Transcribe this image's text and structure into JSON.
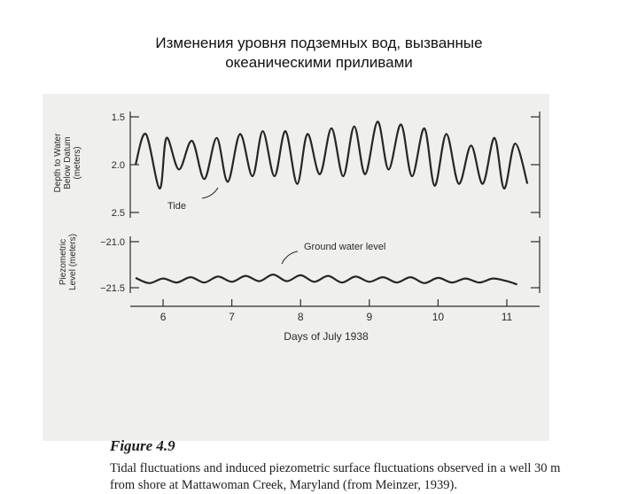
{
  "slide": {
    "title_line1": "Изменения уровня подземных вод, вызванные",
    "title_line2": "океаническими приливами"
  },
  "figure": {
    "number": "Figure 4.9",
    "caption": "Tidal fluctuations and induced piezometric surface fluctuations observed in a well 30 m from shore at Mattawoman Creek, Maryland (from Meinzer, 1939)."
  },
  "chart_data": {
    "type": "line",
    "xlabel": "Days of July 1938",
    "x_ticks": [
      "6",
      "7",
      "8",
      "9",
      "10",
      "11"
    ],
    "xlim": [
      5.6,
      11.4
    ],
    "panels": [
      {
        "name": "tide",
        "ylabel_lines": [
          "Depth to Water",
          "Below Datum",
          "(meters)"
        ],
        "y_ticks": [
          "1.5",
          "2.0",
          "2.5"
        ],
        "ylim": [
          1.5,
          2.5
        ],
        "inverted": true,
        "annotation": "Tide",
        "series": [
          {
            "x": [
              5.6,
              5.75,
              5.95,
              6.05,
              6.23,
              6.42,
              6.6,
              6.78,
              6.94,
              7.12,
              7.3,
              7.45,
              7.62,
              7.78,
              7.95,
              8.1,
              8.28,
              8.45,
              8.62,
              8.78,
              8.94,
              9.12,
              9.28,
              9.46,
              9.62,
              9.8,
              9.95,
              10.12,
              10.3,
              10.48,
              10.65,
              10.82,
              10.96,
              11.12,
              11.3
            ],
            "y": [
              2.0,
              1.68,
              2.25,
              1.72,
              2.05,
              1.75,
              2.15,
              1.72,
              2.18,
              1.68,
              2.12,
              1.65,
              2.12,
              1.65,
              2.2,
              1.68,
              2.1,
              1.62,
              2.12,
              1.6,
              2.1,
              1.55,
              2.05,
              1.58,
              2.12,
              1.62,
              2.22,
              1.68,
              2.2,
              1.8,
              2.2,
              1.72,
              2.25,
              1.78,
              2.2
            ]
          }
        ]
      },
      {
        "name": "ground water",
        "ylabel_lines": [
          "Piezometric",
          "Level (meters)"
        ],
        "y_ticks": [
          "−21.0",
          "−21.5"
        ],
        "ylim": [
          -21.6,
          -20.9
        ],
        "inverted": false,
        "annotation": "Ground water level",
        "series": [
          {
            "x": [
              5.6,
              5.8,
              6.0,
              6.2,
              6.4,
              6.6,
              6.8,
              7.0,
              7.2,
              7.4,
              7.6,
              7.8,
              8.0,
              8.2,
              8.4,
              8.6,
              8.8,
              9.0,
              9.2,
              9.4,
              9.6,
              9.8,
              10.0,
              10.2,
              10.4,
              10.6,
              10.8,
              11.0,
              11.15
            ],
            "y": [
              -21.45,
              -21.53,
              -21.46,
              -21.52,
              -21.44,
              -21.52,
              -21.43,
              -21.51,
              -21.42,
              -21.5,
              -21.4,
              -21.5,
              -21.41,
              -21.51,
              -21.42,
              -21.52,
              -21.43,
              -21.51,
              -21.44,
              -21.52,
              -21.44,
              -21.53,
              -21.45,
              -21.52,
              -21.46,
              -21.52,
              -21.46,
              -21.5,
              -21.55
            ]
          }
        ]
      }
    ]
  }
}
